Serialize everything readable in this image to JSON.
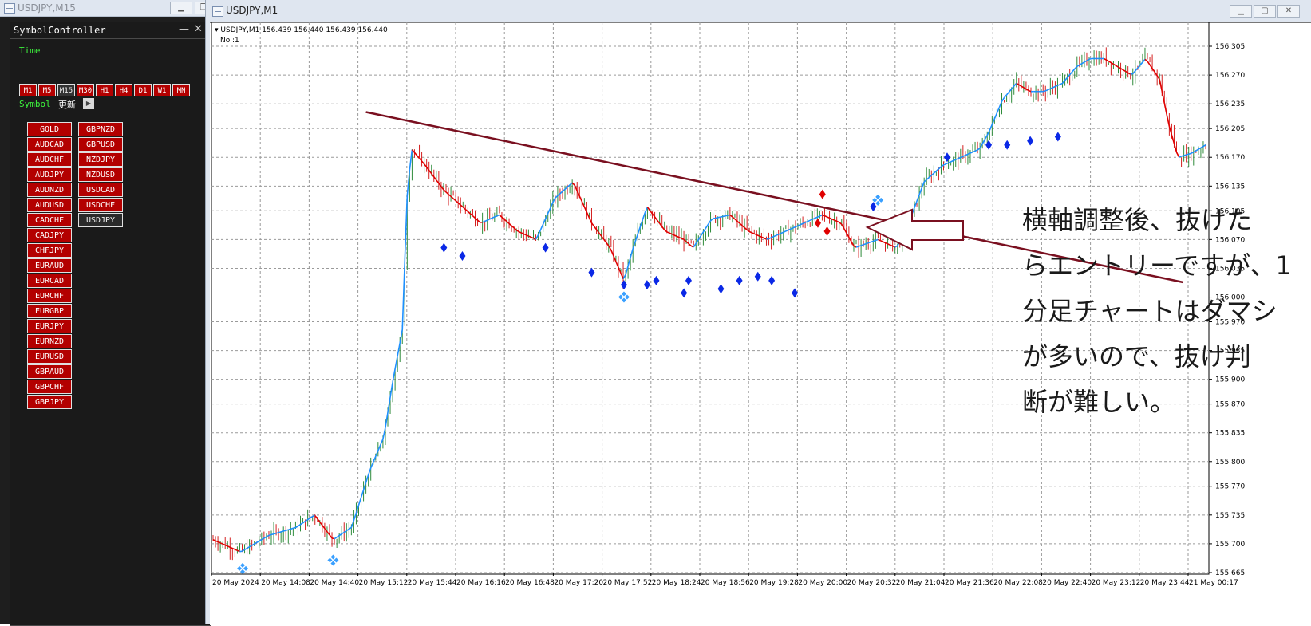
{
  "bg_window": {
    "title": "USDJPY,M15"
  },
  "symbol_controller": {
    "title": "SymbolController",
    "time_label": "Time",
    "symbol_label": "Symbol",
    "refresh_label": "更新",
    "timeframes": [
      "M1",
      "M5",
      "M15",
      "M30",
      "H1",
      "H4",
      "D1",
      "W1",
      "MN"
    ],
    "active_timeframe": "M15",
    "symbols_col1": [
      "GOLD",
      "AUDCAD",
      "AUDCHF",
      "AUDJPY",
      "AUDNZD",
      "AUDUSD",
      "CADCHF",
      "CADJPY",
      "CHFJPY",
      "EURAUD",
      "EURCAD",
      "EURCHF",
      "EURGBP",
      "EURJPY",
      "EURNZD",
      "EURUSD",
      "GBPAUD",
      "GBPCHF",
      "GBPJPY"
    ],
    "symbols_col2": [
      "GBPNZD",
      "GBPUSD",
      "NZDJPY",
      "NZDUSD",
      "USDCAD",
      "USDCHF",
      "USDJPY"
    ],
    "active_symbol": "USDJPY"
  },
  "chart_window": {
    "title": "USDJPY,M1",
    "header_quote": "USDJPY,M1  156.439 156.440 156.439 156.440",
    "header_sub": "No.:1"
  },
  "annotation": {
    "lines": [
      "横軸調整後、抜けた",
      "らエントリーですが、1",
      "分足チャートはダマシ",
      "が多いので、抜け判",
      "断が難しい。"
    ]
  },
  "chart_data": {
    "type": "candlestick",
    "symbol": "USDJPY",
    "timeframe": "M1",
    "y_ticks": [
      156.305,
      156.27,
      156.235,
      156.205,
      156.17,
      156.135,
      156.105,
      156.07,
      156.035,
      156.0,
      155.97,
      155.935,
      155.9,
      155.87,
      155.835,
      155.8,
      155.77,
      155.735,
      155.7,
      155.665
    ],
    "x_ticks": [
      "20 May 2024",
      "20 May 14:08",
      "20 May 14:40",
      "20 May 15:12",
      "20 May 15:44",
      "20 May 16:16",
      "20 May 16:48",
      "20 May 17:20",
      "20 May 17:52",
      "20 May 18:24",
      "20 May 18:56",
      "20 May 19:28",
      "20 May 20:00",
      "20 May 20:32",
      "20 May 21:04",
      "20 May 21:36",
      "20 May 22:08",
      "20 May 22:40",
      "20 May 23:12",
      "20 May 23:44",
      "21 May 00:17"
    ],
    "ylim": [
      155.665,
      156.305
    ],
    "price_path": [
      [
        0,
        155.705
      ],
      [
        0.03,
        155.69
      ],
      [
        0.06,
        155.71
      ],
      [
        0.09,
        155.72
      ],
      [
        0.11,
        155.735
      ],
      [
        0.13,
        155.705
      ],
      [
        0.15,
        155.72
      ],
      [
        0.17,
        155.79
      ],
      [
        0.185,
        155.83
      ],
      [
        0.195,
        155.9
      ],
      [
        0.205,
        155.96
      ],
      [
        0.21,
        156.12
      ],
      [
        0.215,
        156.18
      ],
      [
        0.23,
        156.16
      ],
      [
        0.25,
        156.13
      ],
      [
        0.27,
        156.11
      ],
      [
        0.29,
        156.09
      ],
      [
        0.31,
        156.1
      ],
      [
        0.33,
        156.08
      ],
      [
        0.35,
        156.07
      ],
      [
        0.37,
        156.12
      ],
      [
        0.39,
        156.14
      ],
      [
        0.41,
        156.09
      ],
      [
        0.43,
        156.06
      ],
      [
        0.445,
        156.02
      ],
      [
        0.455,
        156.06
      ],
      [
        0.47,
        156.11
      ],
      [
        0.49,
        156.08
      ],
      [
        0.51,
        156.07
      ],
      [
        0.52,
        156.06
      ],
      [
        0.54,
        156.095
      ],
      [
        0.56,
        156.1
      ],
      [
        0.58,
        156.08
      ],
      [
        0.6,
        156.07
      ],
      [
        0.62,
        156.08
      ],
      [
        0.64,
        156.09
      ],
      [
        0.66,
        156.1
      ],
      [
        0.68,
        156.09
      ],
      [
        0.695,
        156.06
      ],
      [
        0.72,
        156.07
      ],
      [
        0.74,
        156.06
      ],
      [
        0.75,
        156.08
      ],
      [
        0.77,
        156.14
      ],
      [
        0.79,
        156.16
      ],
      [
        0.81,
        156.17
      ],
      [
        0.83,
        156.18
      ],
      [
        0.84,
        156.2
      ],
      [
        0.855,
        156.24
      ],
      [
        0.87,
        156.26
      ],
      [
        0.885,
        156.25
      ],
      [
        0.9,
        156.25
      ],
      [
        0.92,
        156.26
      ],
      [
        0.935,
        156.28
      ],
      [
        0.95,
        156.29
      ],
      [
        0.965,
        156.29
      ],
      [
        0.98,
        156.28
      ],
      [
        0.995,
        156.27
      ],
      [
        1.01,
        156.29
      ],
      [
        1.025,
        156.265
      ],
      [
        1.035,
        156.21
      ],
      [
        1.045,
        156.17
      ],
      [
        1.06,
        156.175
      ],
      [
        1.075,
        156.185
      ]
    ],
    "trendline": {
      "from": [
        "20 May 15:12",
        156.225
      ],
      "to": [
        "20 May 23:44",
        156.018
      ]
    },
    "signals_blue": [
      [
        0.25,
        156.06
      ],
      [
        0.27,
        156.05
      ],
      [
        0.36,
        156.06
      ],
      [
        0.41,
        156.03
      ],
      [
        0.445,
        156.015
      ],
      [
        0.47,
        156.015
      ],
      [
        0.48,
        156.02
      ],
      [
        0.51,
        156.005
      ],
      [
        0.515,
        156.02
      ],
      [
        0.55,
        156.01
      ],
      [
        0.57,
        156.02
      ],
      [
        0.59,
        156.025
      ],
      [
        0.605,
        156.02
      ],
      [
        0.63,
        156.005
      ],
      [
        0.715,
        156.11
      ],
      [
        0.795,
        156.17
      ],
      [
        0.84,
        156.185
      ],
      [
        0.86,
        156.185
      ],
      [
        0.885,
        156.19
      ],
      [
        0.915,
        156.195
      ]
    ],
    "signals_red": [
      [
        0.655,
        156.09
      ],
      [
        0.665,
        156.08
      ],
      [
        0.66,
        156.125
      ]
    ]
  }
}
